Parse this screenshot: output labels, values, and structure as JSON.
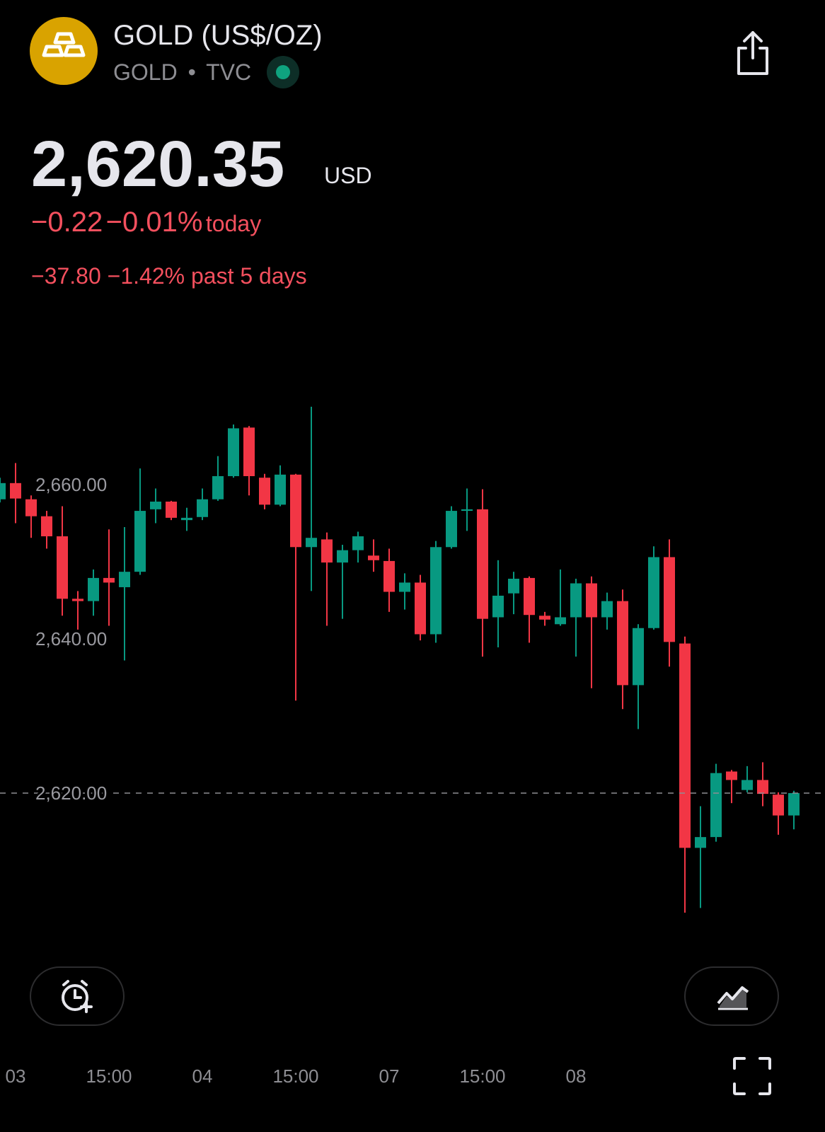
{
  "header": {
    "title": "GOLD (US$/OZ)",
    "symbol": "GOLD",
    "exchange": "TVC"
  },
  "quote": {
    "price": "2,620.35",
    "currency": "USD",
    "change": "−0.22",
    "change_percent": "−0.01%",
    "period": "today"
  },
  "week": {
    "change": "−37.80",
    "change_percent": "−1.42%",
    "period": "past 5 days"
  },
  "chart_data": {
    "type": "candlestick",
    "categories": [
      null,
      "03",
      null,
      null,
      null,
      null,
      null,
      "15:00",
      null,
      null,
      null,
      null,
      null,
      "04",
      null,
      null,
      null,
      null,
      null,
      "15:00",
      null,
      null,
      null,
      null,
      null,
      "07",
      null,
      null,
      null,
      null,
      null,
      "15:00",
      null,
      null,
      null,
      null,
      null,
      "08",
      null,
      null,
      null,
      null,
      null,
      null,
      null,
      null,
      null,
      null,
      null,
      null,
      null,
      null
    ],
    "open": [
      2658.1,
      2660.2,
      2658.1,
      2655.9,
      2653.3,
      2645.2,
      2644.9,
      2647.9,
      2646.7,
      2648.7,
      2656.8,
      2657.8,
      2655.4,
      2655.8,
      2658.1,
      2661.1,
      2667.4,
      2660.9,
      2657.4,
      2661.3,
      2651.9,
      2652.9,
      2649.9,
      2651.5,
      2650.8,
      2650.1,
      2646.1,
      2647.3,
      2640.6,
      2651.9,
      2656.6,
      2656.8,
      2642.8,
      2645.9,
      2647.9,
      2643.0,
      2641.9,
      2642.8,
      2647.2,
      2642.8,
      2644.9,
      2634.0,
      2641.4,
      2650.6,
      2639.4,
      2612.9,
      2614.3,
      2622.8,
      2620.4,
      2621.7,
      2619.8,
      2617.1
    ],
    "high": [
      2660.9,
      2662.8,
      2658.6,
      2656.6,
      2657.2,
      2646.2,
      2649.0,
      2654.2,
      2654.5,
      2662.1,
      2659.5,
      2657.9,
      2657.0,
      2659.5,
      2663.7,
      2667.8,
      2667.6,
      2661.4,
      2662.5,
      2661.4,
      2670.1,
      2653.8,
      2652.2,
      2653.9,
      2652.9,
      2651.7,
      2648.5,
      2648.3,
      2652.7,
      2657.2,
      2659.5,
      2659.4,
      2650.2,
      2648.7,
      2648.1,
      2643.5,
      2649.0,
      2647.8,
      2648.1,
      2646.0,
      2646.4,
      2641.9,
      2652.0,
      2652.9,
      2640.3,
      2618.3,
      2623.8,
      2623.0,
      2623.5,
      2624.0,
      2620.1,
      2620.3
    ],
    "low": [
      2657.7,
      2655.0,
      2653.1,
      2651.7,
      2643.0,
      2641.2,
      2643.0,
      2641.7,
      2637.2,
      2648.3,
      2655.0,
      2655.4,
      2654.0,
      2655.4,
      2657.9,
      2660.9,
      2658.6,
      2656.8,
      2657.2,
      2632.0,
      2646.2,
      2641.7,
      2642.6,
      2649.9,
      2648.7,
      2643.5,
      2643.8,
      2639.8,
      2639.5,
      2651.7,
      2654.0,
      2637.7,
      2638.9,
      2643.2,
      2639.5,
      2641.7,
      2641.7,
      2637.7,
      2633.6,
      2641.2,
      2630.9,
      2628.3,
      2641.2,
      2636.4,
      2604.5,
      2605.1,
      2613.7,
      2618.7,
      2620.1,
      2618.3,
      2614.6,
      2615.3
    ],
    "close": [
      2660.2,
      2658.2,
      2655.9,
      2653.3,
      2645.2,
      2644.9,
      2647.9,
      2647.3,
      2648.7,
      2656.6,
      2657.8,
      2655.7,
      2655.7,
      2658.1,
      2661.1,
      2667.3,
      2661.1,
      2657.4,
      2661.3,
      2651.9,
      2653.1,
      2649.9,
      2651.5,
      2653.3,
      2650.2,
      2646.1,
      2647.3,
      2640.6,
      2651.9,
      2656.6,
      2656.8,
      2642.6,
      2645.6,
      2647.8,
      2643.1,
      2642.5,
      2642.8,
      2647.2,
      2642.8,
      2644.9,
      2634.0,
      2641.4,
      2650.6,
      2639.6,
      2612.9,
      2614.3,
      2622.6,
      2621.7,
      2621.7,
      2619.9,
      2617.1,
      2620.0
    ],
    "up_color": "#089981",
    "down_color": "#f23645",
    "ylim": [
      2600,
      2680
    ],
    "yticks": [
      {
        "value": 2620,
        "label": "2,620.00"
      },
      {
        "value": 2640,
        "label": "2,640.00"
      },
      {
        "value": 2660,
        "label": "2,660.00"
      }
    ]
  }
}
